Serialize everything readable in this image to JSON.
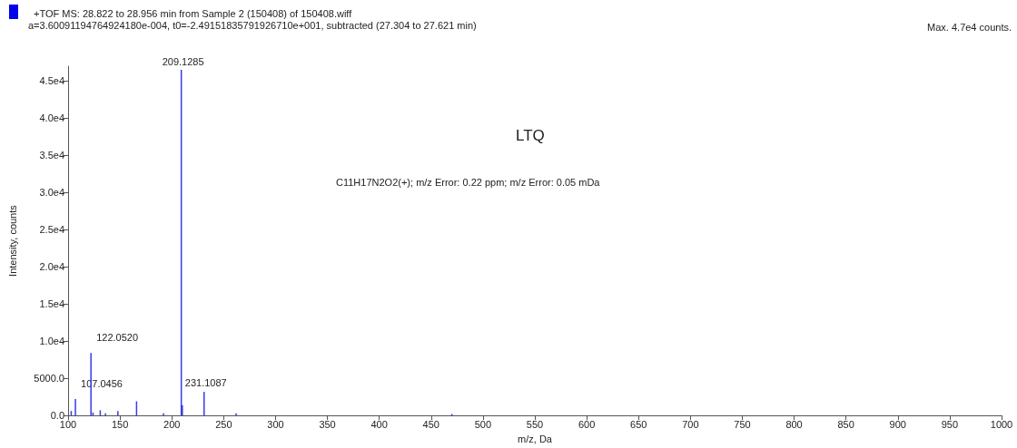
{
  "chart_data": {
    "type": "bar",
    "title": "+TOF MS: 28.822 to 28.956 min from Sample 2 (150408) of 150408.wiff",
    "subtitle": "a=3.60091194764924180e-004, t0=-2.49151835791926710e+001, subtracted (27.304 to 27.621 min)",
    "xlabel": "m/z, Da",
    "ylabel": "Intensity, counts",
    "x": [
      103.0,
      107.0456,
      122.052,
      124.0,
      131.0,
      136.0,
      148.0,
      166.0,
      192.0,
      209.1285,
      210.13,
      231.1087,
      262.0,
      470.0
    ],
    "values": [
      600,
      2200,
      8400,
      400,
      700,
      300,
      600,
      1900,
      300,
      46500,
      1400,
      3200,
      300,
      200
    ],
    "color": "#3a3ae8",
    "xlim": [
      100,
      1000
    ],
    "xticks": [
      100,
      150,
      200,
      250,
      300,
      350,
      400,
      450,
      500,
      550,
      600,
      650,
      700,
      750,
      800,
      850,
      900,
      950,
      1000
    ],
    "ylim": [
      0,
      47000
    ],
    "yticks": [
      {
        "value": 0,
        "label": "0.0"
      },
      {
        "value": 5000,
        "label": "5000.0"
      },
      {
        "value": 10000,
        "label": "1.0e4"
      },
      {
        "value": 15000,
        "label": "1.5e4"
      },
      {
        "value": 20000,
        "label": "2.0e4"
      },
      {
        "value": 25000,
        "label": "2.5e4"
      },
      {
        "value": 30000,
        "label": "3.0e4"
      },
      {
        "value": 35000,
        "label": "3.5e4"
      },
      {
        "value": 40000,
        "label": "4.0e4"
      },
      {
        "value": 45000,
        "label": "4.5e4"
      }
    ],
    "grid": false,
    "annotations": [
      {
        "text": "209.1285",
        "x": 209.1285,
        "y": 46500
      },
      {
        "text": "122.0520",
        "x": 122.052,
        "y": 8400
      },
      {
        "text": "107.0456",
        "x": 107.0456,
        "y": 2200
      },
      {
        "text": "231.1087",
        "x": 231.1087,
        "y": 3200
      },
      "LTQ",
      "C11H17N2O2(+); m/z Error: 0.22 ppm; m/z Error: 0.05 mDa",
      "Max. 4.7e4 counts."
    ]
  }
}
